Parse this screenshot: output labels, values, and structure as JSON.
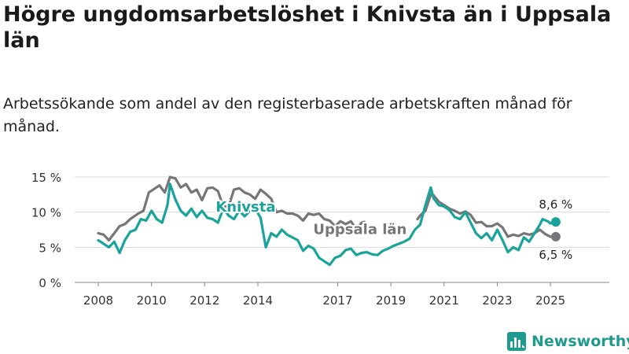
{
  "title": "Högre ungdomsarbetslöshet i Knivsta än i Uppsala län",
  "subtitle": "Arbetssökande som andel av den registerbaserade arbetskraften månad för månad.",
  "logo_text": "Newsworthy",
  "colors": {
    "knivsta": "#1aa39a",
    "uppsala": "#76767a",
    "grid": "#d9d9d9",
    "axis": "#555555",
    "logo": "#1e9a8f"
  },
  "icons": {
    "logo": "newsworthy-logo-icon"
  },
  "chart_data": {
    "type": "line",
    "x_unit": "year",
    "ylabel": "",
    "ylim": [
      0,
      15
    ],
    "y_ticks": [
      0,
      5,
      10,
      15
    ],
    "y_tick_labels": [
      "0 %",
      "5 %",
      "10 %",
      "15 %"
    ],
    "x_ticks": [
      2008,
      2010,
      2012,
      2014,
      2017,
      2019,
      2021,
      2023,
      2025
    ],
    "x_tick_labels": [
      "2008",
      "2010",
      "2012",
      "2014",
      "2017",
      "2019",
      "2021",
      "2023",
      "2025"
    ],
    "grid": true,
    "series": [
      {
        "name": "Uppsala län",
        "color": "#76767a",
        "last_label": "6,5 %",
        "segments": [
          [
            [
              2008.0,
              7.0
            ],
            [
              2008.2,
              6.8
            ],
            [
              2008.4,
              6.0
            ],
            [
              2008.6,
              7.0
            ],
            [
              2008.8,
              8.0
            ],
            [
              2009.0,
              8.3
            ],
            [
              2009.2,
              9.0
            ],
            [
              2009.5,
              9.8
            ],
            [
              2009.7,
              10.2
            ],
            [
              2009.9,
              12.8
            ],
            [
              2010.1,
              13.3
            ],
            [
              2010.3,
              13.8
            ],
            [
              2010.5,
              12.8
            ],
            [
              2010.7,
              15.0
            ],
            [
              2010.9,
              14.8
            ],
            [
              2011.1,
              13.5
            ],
            [
              2011.3,
              14.0
            ],
            [
              2011.5,
              12.8
            ],
            [
              2011.7,
              13.2
            ],
            [
              2011.9,
              11.7
            ],
            [
              2012.1,
              13.4
            ],
            [
              2012.3,
              13.5
            ],
            [
              2012.5,
              13.0
            ],
            [
              2012.7,
              10.8
            ],
            [
              2012.9,
              10.8
            ],
            [
              2013.1,
              13.2
            ],
            [
              2013.3,
              13.4
            ],
            [
              2013.5,
              12.8
            ],
            [
              2013.7,
              12.5
            ],
            [
              2013.9,
              11.9
            ],
            [
              2014.1,
              13.2
            ],
            [
              2014.3,
              12.6
            ],
            [
              2014.5,
              11.9
            ],
            [
              2014.7,
              10.0
            ],
            [
              2014.9,
              10.2
            ],
            [
              2015.1,
              9.8
            ],
            [
              2015.3,
              9.8
            ],
            [
              2015.5,
              9.5
            ],
            [
              2015.7,
              8.8
            ],
            [
              2015.9,
              9.8
            ],
            [
              2016.1,
              9.6
            ],
            [
              2016.3,
              9.8
            ],
            [
              2016.5,
              9.0
            ],
            [
              2016.7,
              8.8
            ],
            [
              2016.9,
              8.0
            ],
            [
              2017.1,
              8.7
            ],
            [
              2017.3,
              8.3
            ],
            [
              2017.5,
              8.7
            ],
            [
              2017.7,
              7.5
            ],
            [
              2017.9,
              8.5
            ],
            [
              2018.0,
              8.6
            ]
          ],
          [
            [
              2020.0,
              9.0
            ],
            [
              2020.1,
              9.5
            ],
            [
              2020.3,
              10.2
            ],
            [
              2020.5,
              12.5
            ],
            [
              2020.6,
              12.4
            ],
            [
              2020.8,
              11.5
            ],
            [
              2021.0,
              11.0
            ],
            [
              2021.2,
              10.5
            ],
            [
              2021.4,
              10.2
            ],
            [
              2021.6,
              9.8
            ],
            [
              2021.8,
              10.1
            ],
            [
              2022.0,
              9.6
            ],
            [
              2022.2,
              8.5
            ],
            [
              2022.4,
              8.6
            ],
            [
              2022.6,
              8.0
            ],
            [
              2022.8,
              8.0
            ],
            [
              2023.0,
              8.4
            ],
            [
              2023.2,
              7.8
            ],
            [
              2023.4,
              6.5
            ],
            [
              2023.6,
              6.8
            ],
            [
              2023.8,
              6.6
            ],
            [
              2024.0,
              7.0
            ],
            [
              2024.2,
              6.8
            ],
            [
              2024.4,
              7.0
            ],
            [
              2024.6,
              7.5
            ],
            [
              2024.8,
              6.9
            ],
            [
              2025.0,
              6.5
            ],
            [
              2025.2,
              6.5
            ]
          ]
        ]
      },
      {
        "name": "Knivsta",
        "color": "#1aa39a",
        "last_label": "8,6 %",
        "segments": [
          [
            [
              2008.0,
              6.0
            ],
            [
              2008.2,
              5.5
            ],
            [
              2008.4,
              5.0
            ],
            [
              2008.6,
              5.8
            ],
            [
              2008.8,
              4.2
            ],
            [
              2009.0,
              6.0
            ],
            [
              2009.2,
              7.2
            ],
            [
              2009.4,
              7.5
            ],
            [
              2009.6,
              9.0
            ],
            [
              2009.8,
              8.8
            ],
            [
              2010.0,
              10.2
            ],
            [
              2010.2,
              9.0
            ],
            [
              2010.4,
              8.5
            ],
            [
              2010.6,
              11.0
            ],
            [
              2010.7,
              14.0
            ],
            [
              2010.9,
              11.8
            ],
            [
              2011.1,
              10.2
            ],
            [
              2011.3,
              9.5
            ],
            [
              2011.5,
              10.5
            ],
            [
              2011.7,
              9.3
            ],
            [
              2011.9,
              10.2
            ],
            [
              2012.1,
              9.2
            ],
            [
              2012.3,
              9.0
            ],
            [
              2012.5,
              8.5
            ],
            [
              2012.7,
              10.5
            ],
            [
              2012.9,
              9.5
            ],
            [
              2013.1,
              9.0
            ],
            [
              2013.3,
              10.2
            ],
            [
              2013.5,
              9.4
            ],
            [
              2013.7,
              10.2
            ],
            [
              2013.9,
              10.5
            ],
            [
              2014.1,
              9.2
            ],
            [
              2014.3,
              5.0
            ],
            [
              2014.5,
              7.0
            ],
            [
              2014.7,
              6.5
            ],
            [
              2014.9,
              7.5
            ],
            [
              2015.1,
              6.8
            ],
            [
              2015.3,
              6.4
            ],
            [
              2015.5,
              6.0
            ],
            [
              2015.7,
              4.5
            ],
            [
              2015.9,
              5.2
            ],
            [
              2016.1,
              4.8
            ],
            [
              2016.3,
              3.5
            ],
            [
              2016.5,
              3.0
            ],
            [
              2016.7,
              2.5
            ],
            [
              2016.9,
              3.5
            ],
            [
              2017.1,
              3.8
            ],
            [
              2017.3,
              4.6
            ],
            [
              2017.5,
              4.8
            ],
            [
              2017.7,
              3.9
            ],
            [
              2017.9,
              4.2
            ],
            [
              2018.1,
              4.3
            ],
            [
              2018.3,
              4.0
            ],
            [
              2018.5,
              3.9
            ],
            [
              2018.7,
              4.5
            ],
            [
              2018.9,
              4.8
            ],
            [
              2019.1,
              5.2
            ],
            [
              2019.3,
              5.5
            ],
            [
              2019.5,
              5.8
            ],
            [
              2019.7,
              6.2
            ],
            [
              2019.9,
              7.5
            ],
            [
              2020.1,
              8.2
            ],
            [
              2020.3,
              11.0
            ],
            [
              2020.5,
              13.5
            ],
            [
              2020.6,
              12.0
            ],
            [
              2020.8,
              11.0
            ],
            [
              2021.0,
              10.8
            ],
            [
              2021.2,
              10.3
            ],
            [
              2021.4,
              9.3
            ],
            [
              2021.6,
              9.0
            ],
            [
              2021.8,
              10.0
            ],
            [
              2022.0,
              8.5
            ],
            [
              2022.2,
              7.0
            ],
            [
              2022.4,
              6.3
            ],
            [
              2022.6,
              7.0
            ],
            [
              2022.8,
              6.0
            ],
            [
              2023.0,
              7.5
            ],
            [
              2023.2,
              6.0
            ],
            [
              2023.4,
              4.3
            ],
            [
              2023.6,
              5.0
            ],
            [
              2023.8,
              4.6
            ],
            [
              2024.0,
              6.4
            ],
            [
              2024.2,
              5.8
            ],
            [
              2024.4,
              7.0
            ],
            [
              2024.6,
              8.2
            ],
            [
              2024.7,
              9.0
            ],
            [
              2024.9,
              8.7
            ],
            [
              2025.0,
              8.4
            ],
            [
              2025.2,
              8.6
            ]
          ]
        ]
      }
    ]
  }
}
